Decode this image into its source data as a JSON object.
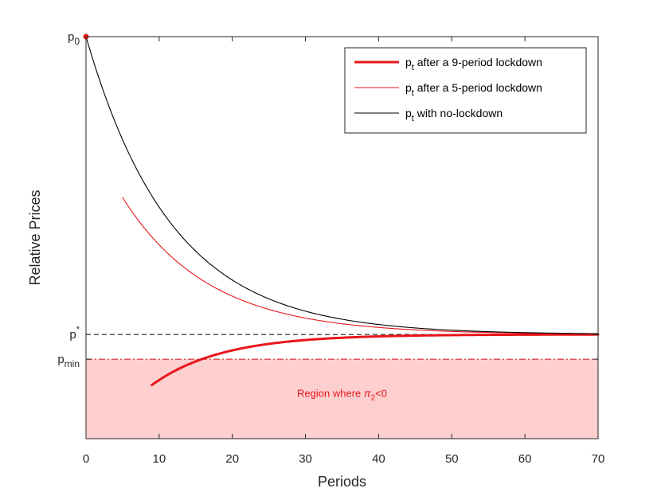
{
  "chart_data": {
    "type": "line",
    "xlabel": "Periods",
    "ylabel": "Relative Prices",
    "xlim": [
      0,
      70
    ],
    "ylim": [
      -0.35,
      1.0
    ],
    "xticks": [
      0,
      10,
      20,
      30,
      40,
      50,
      60,
      70
    ],
    "yticks": [
      {
        "value": 1.0,
        "base": "p",
        "sub": "0",
        "sup": ""
      },
      {
        "value": 0.0,
        "base": "p",
        "sub": "",
        "sup": "*"
      },
      {
        "value": -0.083,
        "base": "p",
        "sub": "min",
        "sup": ""
      }
    ],
    "grid": false,
    "legend_position": "top-right",
    "region": {
      "ymin": -0.35,
      "ymax": -0.083,
      "color": "#fdcfcf",
      "label_parts": {
        "prefix": "Region where ",
        "symbol": "π",
        "sub": "2",
        "suffix": "<0"
      },
      "label_x": 35,
      "label_y": -0.21
    },
    "reference_lines": [
      {
        "name": "p-star",
        "y": 0.0,
        "style": "dashed",
        "color": "#000000"
      },
      {
        "name": "p-min",
        "y": -0.083,
        "style": "dashdot",
        "color": "#c8141a"
      }
    ],
    "start_marker": {
      "x": 0,
      "y": 1.0,
      "color": "#e8151b"
    },
    "series": [
      {
        "name": "after a 9-period lockdown",
        "legend_base": "p",
        "legend_sub": "t",
        "legend_text": " after a 9-period lockdown",
        "start": 9,
        "end": 70,
        "y0": -0.17,
        "rate": 0.105,
        "color": "#e8151b",
        "width": 3
      },
      {
        "name": "after a 5-period lockdown",
        "legend_base": "p",
        "legend_sub": "t",
        "legend_text": " after a 5-period lockdown",
        "start": 5,
        "end": 70,
        "y0": 0.46,
        "rate": 0.085,
        "color": "#e8151b",
        "width": 1.1
      },
      {
        "name": "with no-lockdown",
        "legend_base": "p",
        "legend_sub": "t",
        "legend_text": " with no-lockdown",
        "start": 0,
        "end": 70,
        "y0": 1.0,
        "rate": 0.085,
        "color": "#000000",
        "width": 1.1
      }
    ]
  }
}
